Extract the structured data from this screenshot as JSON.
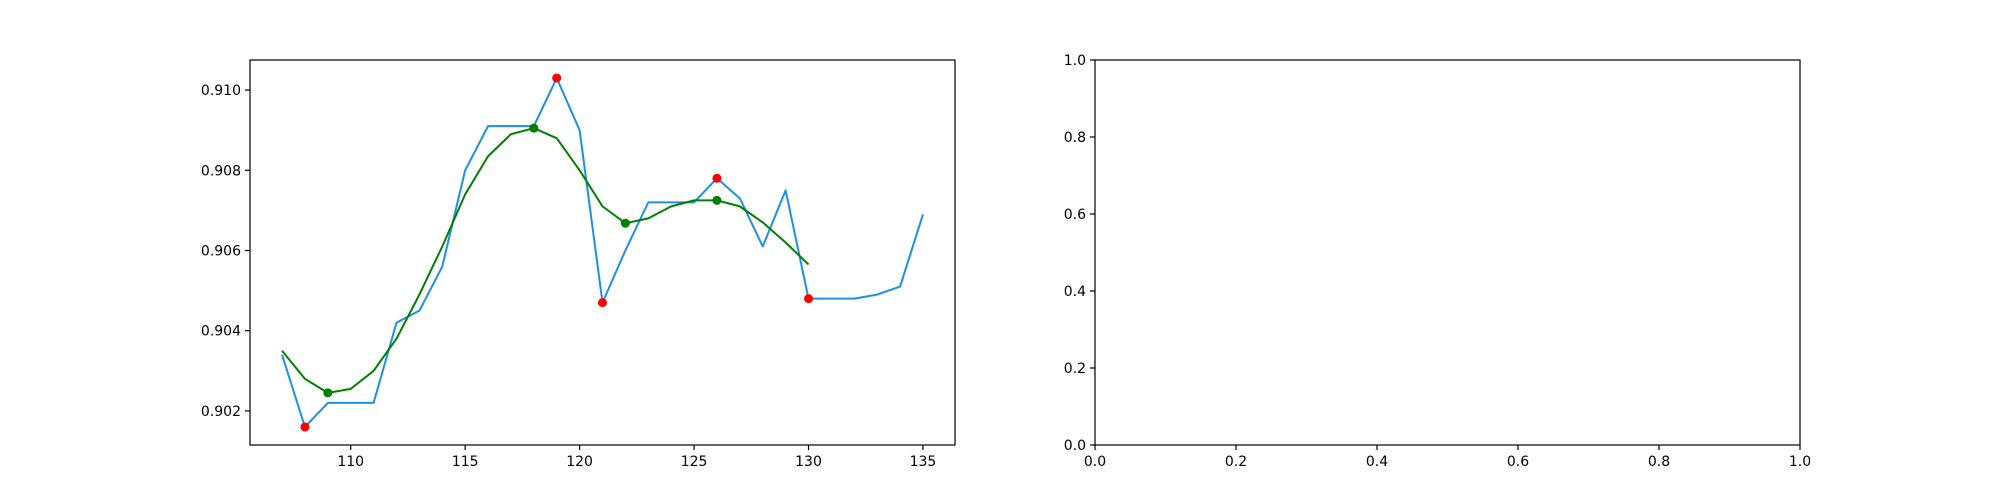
{
  "chart_data": [
    {
      "type": "line",
      "xlim": [
        105.6,
        136.4
      ],
      "ylim": [
        0.90115,
        0.91075
      ],
      "x_ticks": [
        110,
        115,
        120,
        125,
        130,
        135
      ],
      "x_tick_labels": [
        "110",
        "115",
        "120",
        "125",
        "130",
        "135"
      ],
      "y_ticks": [
        0.902,
        0.904,
        0.906,
        0.908,
        0.91
      ],
      "y_tick_labels": [
        "0.902",
        "0.904",
        "0.906",
        "0.908",
        "0.910"
      ],
      "grid": false,
      "series": [
        {
          "color": "#1e8fe6",
          "x": [
            107,
            108,
            109,
            110,
            111,
            112,
            113,
            114,
            115,
            116,
            117,
            118,
            119,
            120,
            121,
            122,
            123,
            124,
            125,
            126,
            127,
            128,
            129,
            130,
            131,
            132,
            133,
            134,
            135
          ],
          "y": [
            0.9034,
            0.9016,
            0.9022,
            0.9022,
            0.9022,
            0.9042,
            0.9045,
            0.9056,
            0.908,
            0.9091,
            0.9091,
            0.9091,
            0.9103,
            0.909,
            0.9047,
            0.906,
            0.9072,
            0.9072,
            0.9072,
            0.9078,
            0.9073,
            0.9061,
            0.9075,
            0.9048,
            0.9048,
            0.9048,
            0.9049,
            0.9051,
            0.9069
          ]
        },
        {
          "color": "#008000",
          "x": [
            107,
            108,
            109,
            110,
            111,
            112,
            113,
            114,
            115,
            116,
            117,
            118,
            119,
            120,
            121,
            122,
            123,
            124,
            125,
            126,
            127,
            128,
            129,
            130
          ],
          "y": [
            0.9035,
            0.9028,
            0.90245,
            0.90255,
            0.903,
            0.9038,
            0.9049,
            0.9061,
            0.9074,
            0.90835,
            0.9089,
            0.90905,
            0.9088,
            0.908,
            0.9071,
            0.90668,
            0.9068,
            0.9071,
            0.90725,
            0.90725,
            0.9071,
            0.9067,
            0.9062,
            0.90565
          ]
        }
      ],
      "marker_sets": [
        {
          "color": "#ff0000",
          "x": [
            108,
            119,
            121,
            126,
            130
          ],
          "y": [
            0.9016,
            0.9103,
            0.9047,
            0.9078,
            0.9048
          ]
        },
        {
          "color": "#008000",
          "x": [
            109,
            118,
            122,
            126
          ],
          "y": [
            0.90245,
            0.90905,
            0.90668,
            0.90725
          ]
        }
      ]
    },
    {
      "type": "line",
      "xlim": [
        0.0,
        1.0
      ],
      "ylim": [
        0.0,
        1.0
      ],
      "x_ticks": [
        0.0,
        0.2,
        0.4,
        0.6,
        0.8,
        1.0
      ],
      "x_tick_labels": [
        "0.0",
        "0.2",
        "0.4",
        "0.6",
        "0.8",
        "1.0"
      ],
      "y_ticks": [
        0.0,
        0.2,
        0.4,
        0.6,
        0.8,
        1.0
      ],
      "y_tick_labels": [
        "0.0",
        "0.2",
        "0.4",
        "0.6",
        "0.8",
        "1.0"
      ],
      "grid": false,
      "series": [],
      "marker_sets": []
    }
  ]
}
